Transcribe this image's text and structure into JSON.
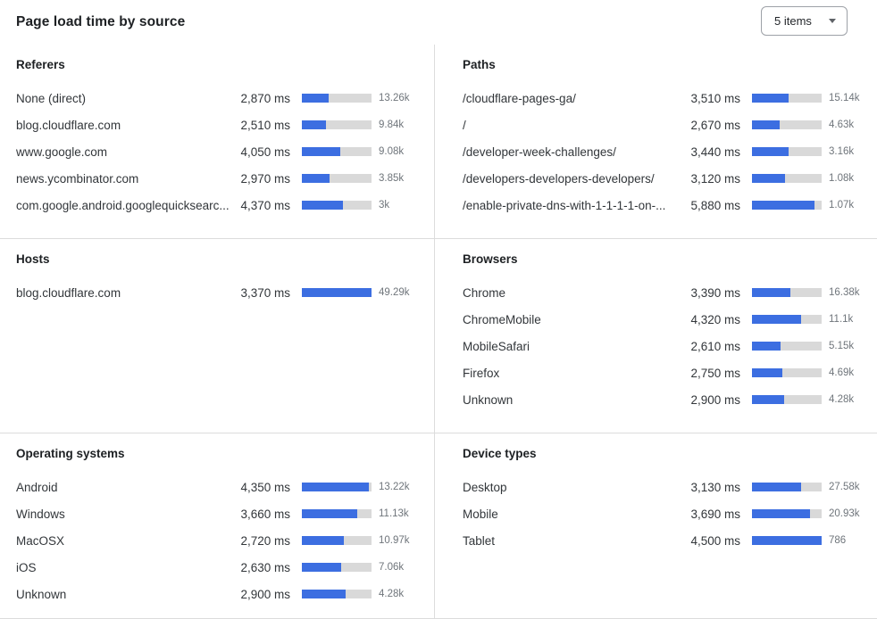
{
  "header": {
    "title": "Page load time by source",
    "dropdown": {
      "label": "5 items"
    }
  },
  "colors": {
    "bar_fill": "#3c6ee1",
    "bar_track": "#d9d9d9",
    "divider": "#dcdcdc"
  },
  "chart_data": {
    "type": "bar",
    "title": "Page load time by source",
    "unit": "ms",
    "legend_position": "none",
    "sections": [
      {
        "title": "Referers",
        "rows": [
          {
            "label": "None (direct)",
            "ms": 2870,
            "ms_label": "2,870 ms",
            "count_label": "13.26k",
            "bar_pct": 39
          },
          {
            "label": "blog.cloudflare.com",
            "ms": 2510,
            "ms_label": "2,510 ms",
            "count_label": "9.84k",
            "bar_pct": 34
          },
          {
            "label": "www.google.com",
            "ms": 4050,
            "ms_label": "4,050 ms",
            "count_label": "9.08k",
            "bar_pct": 55
          },
          {
            "label": "news.ycombinator.com",
            "ms": 2970,
            "ms_label": "2,970 ms",
            "count_label": "3.85k",
            "bar_pct": 40
          },
          {
            "label": "com.google.android.googlequicksearc...",
            "ms": 4370,
            "ms_label": "4,370 ms",
            "count_label": "3k",
            "bar_pct": 59
          }
        ]
      },
      {
        "title": "Paths",
        "rows": [
          {
            "label": "/cloudflare-pages-ga/",
            "ms": 3510,
            "ms_label": "3,510 ms",
            "count_label": "15.14k",
            "bar_pct": 53
          },
          {
            "label": "/",
            "ms": 2670,
            "ms_label": "2,670 ms",
            "count_label": "4.63k",
            "bar_pct": 40
          },
          {
            "label": "/developer-week-challenges/",
            "ms": 3440,
            "ms_label": "3,440 ms",
            "count_label": "3.16k",
            "bar_pct": 52
          },
          {
            "label": "/developers-developers-developers/",
            "ms": 3120,
            "ms_label": "3,120 ms",
            "count_label": "1.08k",
            "bar_pct": 47
          },
          {
            "label": "/enable-private-dns-with-1-1-1-1-on-...",
            "ms": 5880,
            "ms_label": "5,880 ms",
            "count_label": "1.07k",
            "bar_pct": 90
          }
        ]
      },
      {
        "title": "Hosts",
        "rows": [
          {
            "label": "blog.cloudflare.com",
            "ms": 3370,
            "ms_label": "3,370 ms",
            "count_label": "49.29k",
            "bar_pct": 100
          }
        ]
      },
      {
        "title": "Browsers",
        "rows": [
          {
            "label": "Chrome",
            "ms": 3390,
            "ms_label": "3,390 ms",
            "count_label": "16.38k",
            "bar_pct": 55
          },
          {
            "label": "ChromeMobile",
            "ms": 4320,
            "ms_label": "4,320 ms",
            "count_label": "11.1k",
            "bar_pct": 70
          },
          {
            "label": "MobileSafari",
            "ms": 2610,
            "ms_label": "2,610 ms",
            "count_label": "5.15k",
            "bar_pct": 41
          },
          {
            "label": "Firefox",
            "ms": 2750,
            "ms_label": "2,750 ms",
            "count_label": "4.69k",
            "bar_pct": 43
          },
          {
            "label": "Unknown",
            "ms": 2900,
            "ms_label": "2,900 ms",
            "count_label": "4.28k",
            "bar_pct": 46
          }
        ]
      },
      {
        "title": "Operating systems",
        "rows": [
          {
            "label": "Android",
            "ms": 4350,
            "ms_label": "4,350 ms",
            "count_label": "13.22k",
            "bar_pct": 96
          },
          {
            "label": "Windows",
            "ms": 3660,
            "ms_label": "3,660 ms",
            "count_label": "11.13k",
            "bar_pct": 80
          },
          {
            "label": "MacOSX",
            "ms": 2720,
            "ms_label": "2,720 ms",
            "count_label": "10.97k",
            "bar_pct": 60
          },
          {
            "label": "iOS",
            "ms": 2630,
            "ms_label": "2,630 ms",
            "count_label": "7.06k",
            "bar_pct": 57
          },
          {
            "label": "Unknown",
            "ms": 2900,
            "ms_label": "2,900 ms",
            "count_label": "4.28k",
            "bar_pct": 63
          }
        ]
      },
      {
        "title": "Device types",
        "rows": [
          {
            "label": "Desktop",
            "ms": 3130,
            "ms_label": "3,130 ms",
            "count_label": "27.58k",
            "bar_pct": 70
          },
          {
            "label": "Mobile",
            "ms": 3690,
            "ms_label": "3,690 ms",
            "count_label": "20.93k",
            "bar_pct": 83
          },
          {
            "label": "Tablet",
            "ms": 4500,
            "ms_label": "4,500 ms",
            "count_label": "786",
            "bar_pct": 100
          }
        ]
      }
    ]
  }
}
